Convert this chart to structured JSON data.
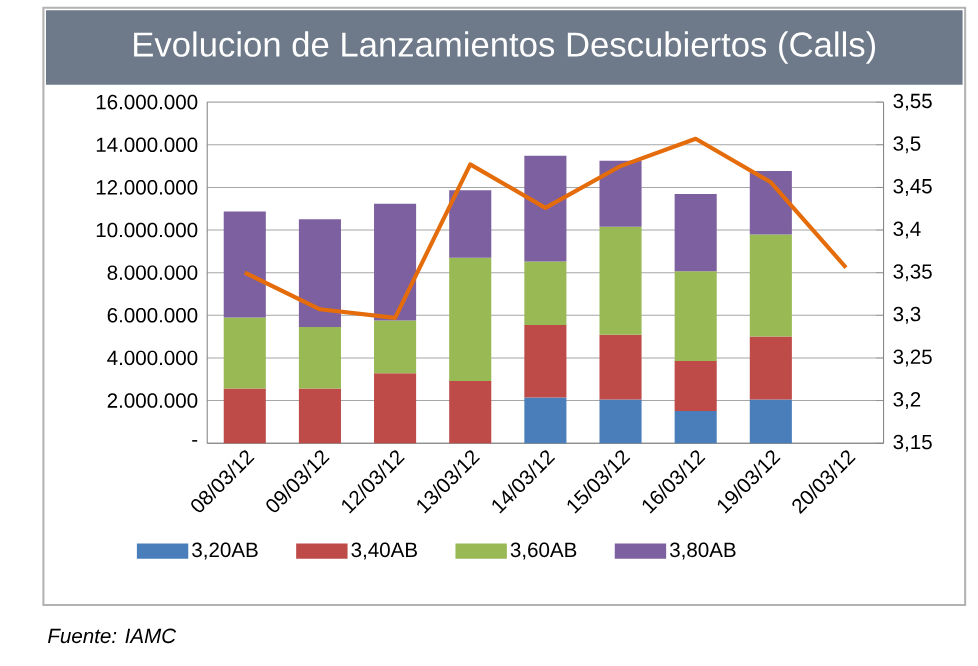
{
  "chart_data": {
    "type": "bar",
    "title": "Evolucion de Lanzamientos Descubiertos (Calls)",
    "categories": [
      "08/03/12",
      "09/03/12",
      "12/03/12",
      "13/03/12",
      "14/03/12",
      "15/03/12",
      "16/03/12",
      "19/03/12",
      "20/03/12"
    ],
    "stacked": true,
    "series": [
      {
        "name": "3,20AB",
        "color": "#4a7ebb",
        "values": [
          null,
          null,
          null,
          null,
          2140000,
          2050000,
          1510000,
          2050000,
          null
        ]
      },
      {
        "name": "3,40AB",
        "color": "#be4b48",
        "values": [
          2560000,
          2560000,
          3280000,
          2920000,
          3400000,
          3040000,
          2350000,
          2950000,
          null
        ]
      },
      {
        "name": "3,60AB",
        "color": "#98b954",
        "values": [
          3340000,
          2890000,
          2470000,
          5780000,
          2980000,
          5060000,
          4210000,
          4790000,
          null
        ]
      },
      {
        "name": "3,80AB",
        "color": "#7d60a0",
        "values": [
          4970000,
          5060000,
          5480000,
          3170000,
          4970000,
          3100000,
          3620000,
          2980000,
          null
        ]
      },
      {
        "type": "line",
        "axis": "y2",
        "color": "#e46c0a",
        "values": [
          3.35,
          3.307,
          3.297,
          3.477,
          3.426,
          3.475,
          3.507,
          3.456,
          3.356
        ]
      }
    ],
    "ylim": [
      0,
      16000000
    ],
    "yticks": [
      {
        "value": 0,
        "label": "-"
      },
      {
        "value": 2000000,
        "label": "2.000.000"
      },
      {
        "value": 4000000,
        "label": "4.000.000"
      },
      {
        "value": 6000000,
        "label": "6.000.000"
      },
      {
        "value": 8000000,
        "label": "8.000.000"
      },
      {
        "value": 10000000,
        "label": "10.000.000"
      },
      {
        "value": 12000000,
        "label": "12.000.000"
      },
      {
        "value": 14000000,
        "label": "14.000.000"
      },
      {
        "value": 16000000,
        "label": "16.000.000"
      }
    ],
    "y2lim": [
      3.15,
      3.55
    ],
    "y2ticks": [
      {
        "value": 3.15,
        "label": "3,15"
      },
      {
        "value": 3.2,
        "label": "3,2"
      },
      {
        "value": 3.25,
        "label": "3,25"
      },
      {
        "value": 3.3,
        "label": "3,3"
      },
      {
        "value": 3.35,
        "label": "3,35"
      },
      {
        "value": 3.4,
        "label": "3,4"
      },
      {
        "value": 3.45,
        "label": "3,45"
      },
      {
        "value": 3.5,
        "label": "3,5"
      },
      {
        "value": 3.55,
        "label": "3,55"
      }
    ],
    "grid": "y",
    "legend": "bottom",
    "annotations": [
      "Fuente:  IAMC"
    ]
  }
}
